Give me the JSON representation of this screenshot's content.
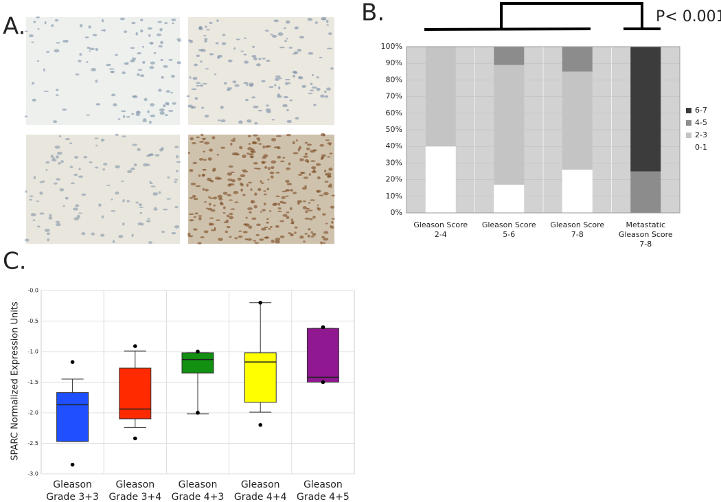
{
  "panel_labels": [
    "A.",
    "B.",
    "C."
  ],
  "chart_data": [
    {
      "type": "bar",
      "stacked": true,
      "annotation": "P< 0.001",
      "categories": [
        [
          "Gleason Score",
          "2-4"
        ],
        [
          "Gleason Score",
          "5-6"
        ],
        [
          "Gleason Score",
          "7-8"
        ],
        [
          "Metastatic",
          "Gleason Score",
          "7-8"
        ]
      ],
      "series": [
        {
          "name": "0-1",
          "color": "#ffffff",
          "values": [
            40,
            17,
            26,
            0
          ]
        },
        {
          "name": "2-3",
          "color": "#c4c4c4",
          "values": [
            60,
            72,
            59,
            0
          ]
        },
        {
          "name": "4-5",
          "color": "#8c8c8c",
          "values": [
            0,
            11,
            15,
            25
          ]
        },
        {
          "name": "6-7",
          "color": "#3c3c3c",
          "values": [
            0,
            0,
            0,
            75
          ]
        }
      ],
      "ylim": [
        0,
        100
      ],
      "yticks": [
        {
          "value": 0,
          "label": "0%"
        },
        {
          "value": 10,
          "label": "10%"
        },
        {
          "value": 20,
          "label": "20%"
        },
        {
          "value": 30,
          "label": "30%"
        },
        {
          "value": 40,
          "label": "40%"
        },
        {
          "value": 50,
          "label": "50%"
        },
        {
          "value": 60,
          "label": "60%"
        },
        {
          "value": 70,
          "label": "70%"
        },
        {
          "value": 80,
          "label": "80%"
        },
        {
          "value": 90,
          "label": "90%"
        },
        {
          "value": 100,
          "label": "100%"
        }
      ],
      "grid": true,
      "legend": "right"
    },
    {
      "type": "box",
      "y_label": "SPARC Normalized Expression Units",
      "categories": [
        [
          "Gleason",
          "Grade 3+3"
        ],
        [
          "Gleason",
          "Grade 3+4"
        ],
        [
          "Gleason",
          "Grade 4+3"
        ],
        [
          "Gleason",
          "Grade 4+4"
        ],
        [
          "Gleason",
          "Grade 4+5"
        ]
      ],
      "boxes": [
        {
          "color": "#1f4fff",
          "max": -1.45,
          "q3": -1.67,
          "median": -1.87,
          "q1": -2.47,
          "min": -2.47,
          "outliers": [
            -1.17,
            -2.85
          ]
        },
        {
          "color": "#ff2a00",
          "max": -0.99,
          "q3": -1.27,
          "median": -1.94,
          "q1": -2.1,
          "min": -2.24,
          "outliers": [
            -0.91,
            -2.42
          ]
        },
        {
          "color": "#119011",
          "max": -1.02,
          "q3": -1.02,
          "median": -1.13,
          "q1": -1.35,
          "min": -2.02,
          "outliers": [
            -1.0,
            -2.0
          ]
        },
        {
          "color": "#ffff00",
          "max": -0.2,
          "q3": -1.02,
          "median": -1.17,
          "q1": -1.83,
          "min": -1.99,
          "outliers": [
            -0.2,
            -2.2
          ]
        },
        {
          "color": "#901890",
          "max": -0.62,
          "q3": -0.62,
          "median": -1.42,
          "q1": -1.5,
          "min": -1.5,
          "outliers": [
            -0.6,
            -1.5
          ]
        }
      ],
      "ylim": [
        -3,
        0
      ],
      "yticks": [
        {
          "value": 0,
          "label": "-0.0"
        },
        {
          "value": -0.5,
          "label": "-0.5"
        },
        {
          "value": -1,
          "label": "-1.0"
        },
        {
          "value": -1.5,
          "label": "-1.5"
        },
        {
          "value": -2,
          "label": "-2.0"
        },
        {
          "value": -2.5,
          "label": "-2.5"
        },
        {
          "value": -3,
          "label": "-3.0"
        }
      ],
      "grid": true
    }
  ]
}
